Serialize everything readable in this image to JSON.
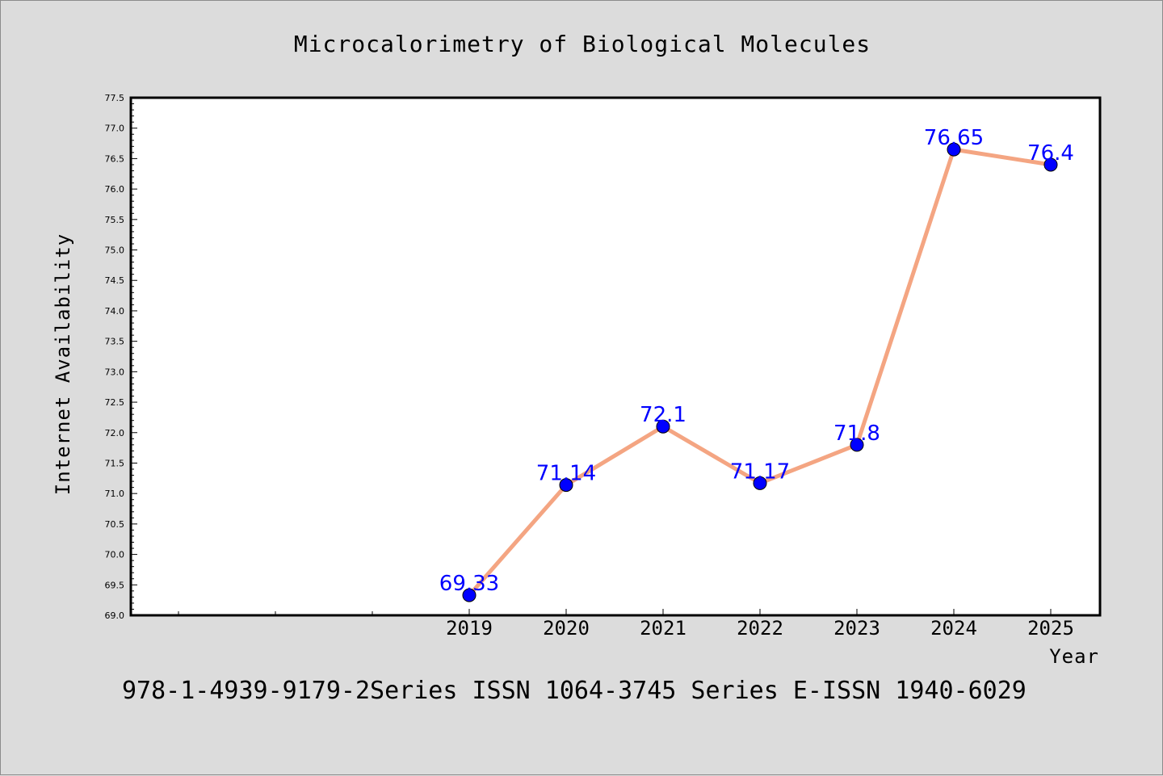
{
  "chart_data": {
    "type": "line",
    "title": "Microcalorimetry of Biological Molecules",
    "xlabel": "Year",
    "ylabel": "Internet Availability",
    "x": [
      "2019",
      "2020",
      "2021",
      "2022",
      "2023",
      "2024",
      "2025"
    ],
    "series": [
      {
        "values": [
          69.33,
          71.14,
          72.1,
          71.17,
          71.8,
          76.65,
          76.4
        ]
      }
    ],
    "data_labels": [
      "69.33",
      "71.14",
      "72.1",
      "71.17",
      "71.8",
      "76.65",
      "76.4"
    ],
    "ylim": [
      69.0,
      77.5
    ],
    "yticks": [
      "69.0",
      "69.5",
      "70.0",
      "70.5",
      "71.0",
      "71.5",
      "72.0",
      "72.5",
      "73.0",
      "73.5",
      "74.0",
      "74.5",
      "75.0",
      "75.5",
      "76.0",
      "76.5",
      "77.0",
      "77.5"
    ],
    "grid": false,
    "legend": "none",
    "colors": {
      "line": "#f4a582",
      "marker": "#0000ff",
      "label": "#0000ff",
      "background": "#dcdcdc",
      "plot_background": "#ffffff"
    }
  },
  "footer": "978-1-4939-9179-2Series ISSN 1064-3745 Series E-ISSN 1940-6029"
}
